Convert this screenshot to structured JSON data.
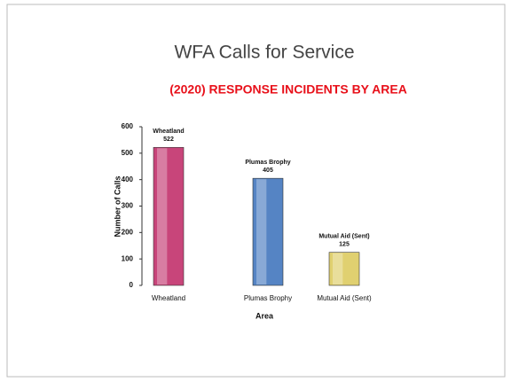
{
  "chart_data": {
    "type": "bar",
    "title": "WFA Calls for Service",
    "subtitle": "(2020) RESPONSE INCIDENTS BY AREA",
    "y_label": "Number of Calls",
    "x_label": "Area",
    "categories": [
      "Wheatland",
      "Plumas Brophy",
      "Mutual Aid (Sent)"
    ],
    "values": [
      522,
      405,
      125
    ],
    "colors": [
      "#c8457a",
      "#5584c4",
      "#e0d070"
    ],
    "ylim": [
      0,
      600
    ],
    "yticks": [
      0,
      100,
      200,
      300,
      400,
      500,
      600
    ],
    "grid": false
  }
}
